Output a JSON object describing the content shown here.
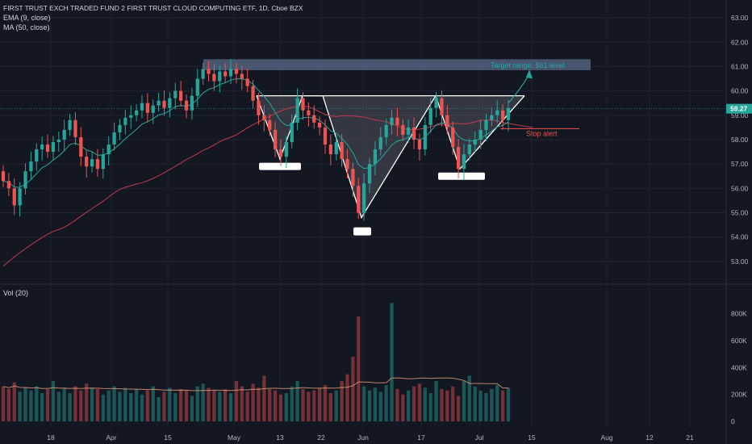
{
  "header": {
    "title": "FIRST TRUST EXCH TRADED FUND 2 FIRST TRUST CLOUD COMPUTING ETF, 1D, Cboe BZX",
    "ema_label": "EMA (9, close)",
    "ma_label": "MA (50, close)",
    "vol_label": "Vol (20)"
  },
  "colors": {
    "background": "#131722",
    "up": "#26a69a",
    "down": "#ef5350",
    "ema": "#26a69a",
    "ma": "#c2394a",
    "pattern_fill": "#5d606b",
    "target_zone": "#5b6b8a",
    "price_badge": "#26a69a"
  },
  "chart_data": {
    "type": "candlestick",
    "y_ticks": [
      "53.00",
      "54.00",
      "55.00",
      "56.00",
      "57.00",
      "58.00",
      "59.00",
      "60.00",
      "61.00",
      "62.00",
      "63.00"
    ],
    "x_ticks": [
      "18",
      "Apr",
      "15",
      "May",
      "13",
      "22",
      "Jun",
      "17",
      "Jul",
      "15",
      "Aug",
      "12",
      "21"
    ],
    "volume_ticks": [
      "800K",
      "600K",
      "400K",
      "200K",
      "0"
    ],
    "last_price": "59.27",
    "ylim": [
      52.3,
      63.4
    ],
    "volume_ylim": [
      0,
      900000
    ],
    "start_price": 56.7,
    "closes": [
      56.3,
      56.0,
      55.3,
      56.0,
      56.7,
      57.1,
      57.6,
      57.8,
      57.5,
      57.9,
      58.0,
      58.4,
      58.8,
      58.1,
      57.3,
      56.9,
      57.2,
      56.8,
      57.4,
      57.8,
      58.3,
      58.6,
      58.9,
      59.0,
      59.2,
      59.5,
      59.1,
      59.4,
      59.6,
      59.3,
      59.7,
      60.0,
      59.6,
      59.2,
      59.8,
      60.5,
      60.9,
      60.7,
      60.4,
      60.8,
      60.6,
      60.9,
      60.7,
      60.5,
      60.2,
      59.6,
      59.0,
      58.8,
      58.4,
      57.6,
      57.3,
      57.9,
      58.7,
      59.7,
      59.2,
      59.0,
      58.7,
      58.5,
      57.8,
      57.4,
      57.9,
      57.2,
      56.8,
      56.1,
      55.0,
      56.2,
      57.0,
      57.6,
      58.1,
      58.6,
      58.9,
      58.6,
      58.2,
      58.5,
      58.0,
      57.6,
      58.6,
      59.3,
      59.7,
      59.0,
      58.5,
      57.7,
      56.8,
      57.4,
      57.8,
      58.0,
      58.4,
      58.8,
      59.0,
      59.2,
      58.8,
      59.3
    ],
    "volumes": [
      260,
      240,
      290,
      220,
      250,
      230,
      260,
      210,
      240,
      300,
      220,
      250,
      210,
      260,
      230,
      280,
      250,
      240,
      200,
      230,
      260,
      220,
      250,
      210,
      240,
      200,
      230,
      260,
      180,
      220,
      250,
      210,
      240,
      230,
      190,
      260,
      280,
      250,
      230,
      220,
      240,
      210,
      300,
      260,
      220,
      280,
      250,
      340,
      240,
      230,
      200,
      210,
      260,
      300,
      240,
      220,
      230,
      250,
      270,
      210,
      230,
      300,
      350,
      480,
      780,
      260,
      230,
      250,
      220,
      270,
      880,
      240,
      200,
      230,
      260,
      280,
      250,
      210,
      300,
      240,
      230,
      260,
      190,
      300,
      340,
      260,
      230,
      210,
      240,
      270,
      230,
      250
    ],
    "ema_period": 9,
    "ma_period": 50,
    "ma_start": 52.6
  },
  "annotations": {
    "target_label": "Target range: $61 level",
    "stop_label": "Stop alert"
  }
}
